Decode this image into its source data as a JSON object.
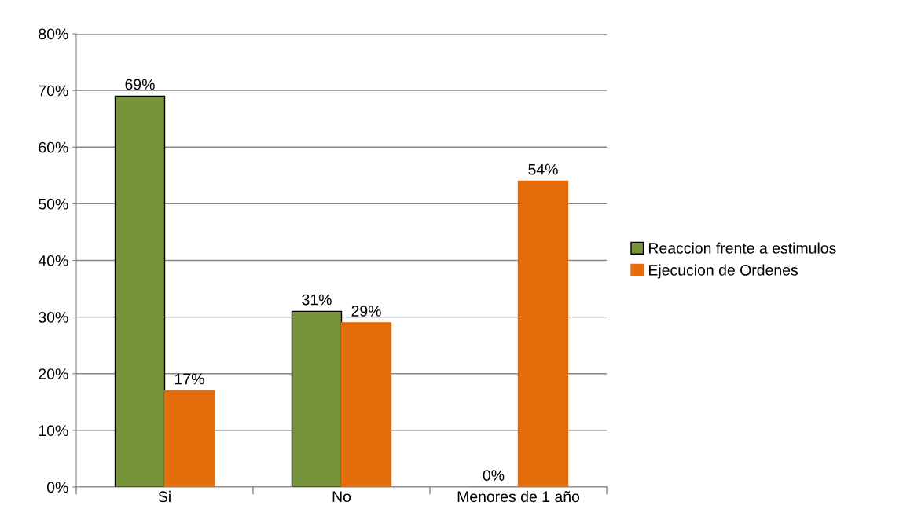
{
  "chart_data": {
    "type": "bar",
    "categories": [
      "Si",
      "No",
      "Menores de 1 año"
    ],
    "series": [
      {
        "name": "Reaccion frente a estimulos",
        "color": "#77933c",
        "values": [
          69,
          31,
          0
        ],
        "value_labels": [
          "69%",
          "31%",
          "0%"
        ]
      },
      {
        "name": "Ejecucion de Ordenes",
        "color": "#e46c0a",
        "values": [
          17,
          29,
          54
        ],
        "value_labels": [
          "17%",
          "29%",
          "54%"
        ]
      }
    ],
    "ylim": [
      0,
      80
    ],
    "yticks": [
      {
        "value": 0,
        "label": "0%"
      },
      {
        "value": 10,
        "label": "10%"
      },
      {
        "value": 20,
        "label": "20%"
      },
      {
        "value": 30,
        "label": "30%"
      },
      {
        "value": 40,
        "label": "40%"
      },
      {
        "value": 50,
        "label": "50%"
      },
      {
        "value": 60,
        "label": "60%"
      },
      {
        "value": 70,
        "label": "70%"
      },
      {
        "value": 80,
        "label": "80%"
      }
    ],
    "grid": "y",
    "legend": "right"
  }
}
